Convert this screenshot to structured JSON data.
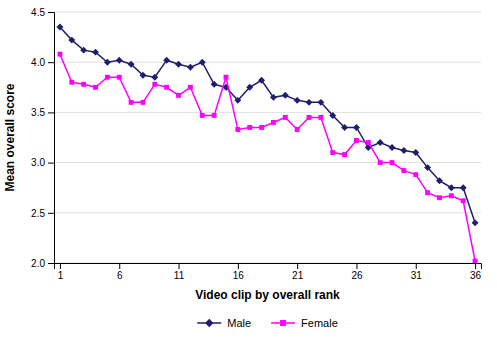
{
  "chart_data": {
    "type": "line",
    "xlabel": "Video clip by overall rank",
    "ylabel": "Mean overall score",
    "x": [
      1,
      2,
      3,
      4,
      5,
      6,
      7,
      8,
      9,
      10,
      11,
      12,
      13,
      14,
      15,
      16,
      17,
      18,
      19,
      20,
      21,
      22,
      23,
      24,
      25,
      26,
      27,
      28,
      29,
      30,
      31,
      32,
      33,
      34,
      35,
      36
    ],
    "series": [
      {
        "name": "Male",
        "color": "#1F1F6E",
        "marker": "diamond",
        "values": [
          4.35,
          4.22,
          4.12,
          4.1,
          4.0,
          4.02,
          3.98,
          3.87,
          3.85,
          4.02,
          3.98,
          3.95,
          4.0,
          3.78,
          3.75,
          3.62,
          3.75,
          3.82,
          3.65,
          3.67,
          3.62,
          3.6,
          3.6,
          3.47,
          3.35,
          3.35,
          3.15,
          3.2,
          3.15,
          3.12,
          3.1,
          2.95,
          2.82,
          2.75,
          2.75,
          2.4
        ]
      },
      {
        "name": "Female",
        "color": "#FF00FF",
        "marker": "square",
        "values": [
          4.08,
          3.8,
          3.78,
          3.75,
          3.85,
          3.85,
          3.6,
          3.6,
          3.78,
          3.75,
          3.67,
          3.75,
          3.47,
          3.47,
          3.85,
          3.33,
          3.35,
          3.35,
          3.4,
          3.45,
          3.33,
          3.45,
          3.45,
          3.1,
          3.08,
          3.22,
          3.2,
          3.0,
          3.0,
          2.92,
          2.88,
          2.7,
          2.65,
          2.67,
          2.62,
          2.02
        ]
      }
    ],
    "xlim": [
      0.5,
      36.5
    ],
    "ylim": [
      2.0,
      4.5
    ],
    "xticks": [
      1,
      6,
      11,
      16,
      21,
      26,
      31,
      36
    ],
    "yticks": [
      {
        "value": 2.0,
        "label": "2.0"
      },
      2.5,
      {
        "value": 3.0,
        "label": "3.0"
      },
      3.5,
      {
        "value": 4.0,
        "label": "4.0"
      },
      4.5
    ],
    "grid": true,
    "legend": "bottom"
  }
}
